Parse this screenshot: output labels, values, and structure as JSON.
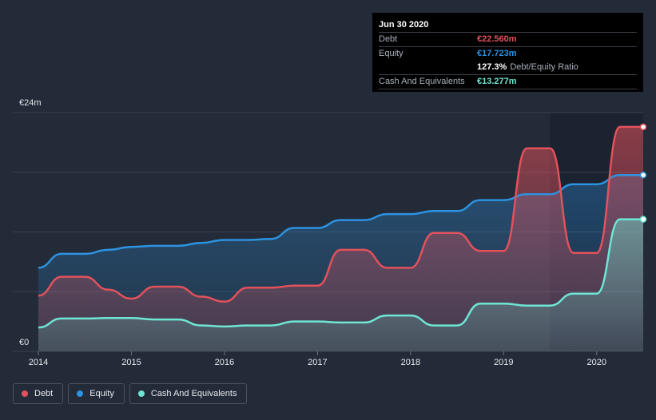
{
  "tooltip": {
    "date": "Jun 30 2020",
    "debt_label": "Debt",
    "debt_value": "€22.560m",
    "equity_label": "Equity",
    "equity_value": "€17.723m",
    "ratio_value": "127.3%",
    "ratio_label": "Debt/Equity Ratio",
    "cash_label": "Cash And Equivalents",
    "cash_value": "€13.277m"
  },
  "legend": [
    {
      "label": "Debt",
      "color": "#e3515b"
    },
    {
      "label": "Equity",
      "color": "#2d92e0"
    },
    {
      "label": "Cash And Equivalents",
      "color": "#6ee6d3"
    }
  ],
  "colors": {
    "debt": "#e3515b",
    "equity": "#2d92e0",
    "cash": "#6ee6d3",
    "background": "#232b38"
  },
  "chart_data": {
    "type": "area",
    "ylabel_top": "€24m",
    "ylabel_bottom": "€0",
    "ylim": [
      0,
      24
    ],
    "xlim": [
      2014.0,
      2020.5
    ],
    "x_ticks": [
      "2014",
      "2015",
      "2016",
      "2017",
      "2018",
      "2019",
      "2020"
    ],
    "grid": true,
    "legend_position": "bottom-left",
    "series": [
      {
        "name": "Debt",
        "x": [
          2014.0,
          2014.25,
          2014.5,
          2014.75,
          2015.0,
          2015.25,
          2015.5,
          2015.75,
          2016.0,
          2016.25,
          2016.5,
          2016.75,
          2017.0,
          2017.25,
          2017.5,
          2017.75,
          2018.0,
          2018.25,
          2018.5,
          2018.75,
          2019.0,
          2019.25,
          2019.5,
          2019.75,
          2020.0,
          2020.25,
          2020.5
        ],
        "values": [
          5.6,
          7.5,
          7.5,
          6.2,
          5.3,
          6.5,
          6.5,
          5.5,
          5.0,
          6.4,
          6.4,
          6.6,
          6.6,
          10.2,
          10.2,
          8.4,
          8.4,
          11.9,
          11.9,
          10.1,
          10.1,
          20.4,
          20.4,
          9.9,
          9.9,
          22.56,
          22.56
        ]
      },
      {
        "name": "Equity",
        "x": [
          2014.0,
          2014.25,
          2014.5,
          2014.75,
          2015.0,
          2015.25,
          2015.5,
          2015.75,
          2016.0,
          2016.25,
          2016.5,
          2016.75,
          2017.0,
          2017.25,
          2017.5,
          2017.75,
          2018.0,
          2018.25,
          2018.5,
          2018.75,
          2019.0,
          2019.25,
          2019.5,
          2019.75,
          2020.0,
          2020.25,
          2020.5
        ],
        "values": [
          8.4,
          9.8,
          9.8,
          10.2,
          10.5,
          10.6,
          10.6,
          10.9,
          11.2,
          11.2,
          11.3,
          12.4,
          12.4,
          13.2,
          13.2,
          13.8,
          13.8,
          14.1,
          14.1,
          15.2,
          15.2,
          15.8,
          15.8,
          16.8,
          16.8,
          17.723,
          17.723
        ]
      },
      {
        "name": "Cash And Equivalents",
        "x": [
          2014.0,
          2014.25,
          2014.5,
          2014.75,
          2015.0,
          2015.25,
          2015.5,
          2015.75,
          2016.0,
          2016.25,
          2016.5,
          2016.75,
          2017.0,
          2017.25,
          2017.5,
          2017.75,
          2018.0,
          2018.25,
          2018.5,
          2018.75,
          2019.0,
          2019.25,
          2019.5,
          2019.75,
          2020.0,
          2020.25,
          2020.5
        ],
        "values": [
          2.4,
          3.3,
          3.3,
          3.35,
          3.35,
          3.2,
          3.2,
          2.6,
          2.5,
          2.6,
          2.6,
          3.0,
          3.0,
          2.9,
          2.9,
          3.6,
          3.6,
          2.6,
          2.6,
          4.8,
          4.8,
          4.6,
          4.6,
          5.8,
          5.8,
          13.277,
          13.277
        ]
      }
    ]
  }
}
